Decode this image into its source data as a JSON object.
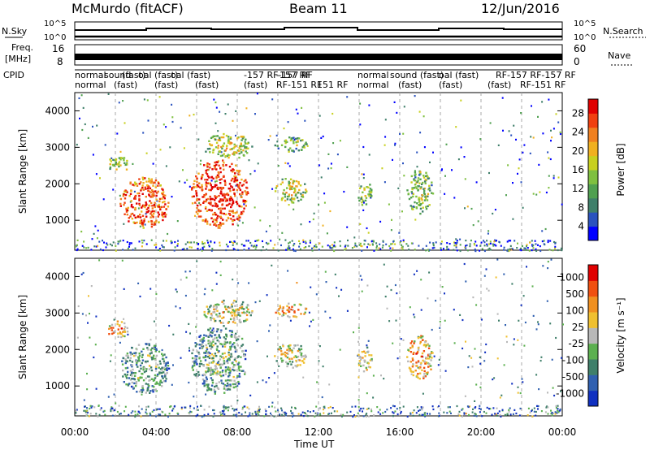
{
  "header": {
    "left": "McMurdo (fitACF)",
    "center": "Beam 11",
    "right": "12/Jun/2016"
  },
  "strips": {
    "noise_left": "N.Sky",
    "noise_right": "N.Search",
    "noise_ticks": [
      "10^5",
      "10^0"
    ],
    "freq_left_top": "Freq.",
    "freq_left_unit": "[MHz]",
    "freq_ticks_left": [
      "16",
      "8"
    ],
    "freq_ticks_right": [
      "60",
      "0"
    ],
    "freq_right": "Nave",
    "cpid_label": "CPID",
    "cpid_row1": [
      "normal",
      "sound",
      "(fast)",
      "oal (fast)",
      "oal (fast)",
      "-157 RF-157 RF",
      "-157 RF",
      "normal",
      "sound (fast)",
      "oal (fast)",
      "RF-157 RF-157 RF"
    ],
    "cpid_row2": [
      "normal",
      "(fast)",
      "(fast)",
      "(fast)",
      "(fast)",
      "RF-151 RF",
      "151 RF",
      "normal",
      "(fast)",
      "(fast)",
      "(fast)",
      "RF-151 RF"
    ]
  },
  "chart_data": [
    {
      "type": "heatmap",
      "panel": "power",
      "xlabel": "Time UT",
      "ylabel": "Slant Range [km]",
      "x_range_hours": [
        0,
        24
      ],
      "x_ticks": [
        "00:00",
        "04:00",
        "08:00",
        "12:00",
        "16:00",
        "20:00",
        "00:00"
      ],
      "y_range_km": [
        180,
        4500
      ],
      "y_ticks": [
        1000,
        2000,
        3000,
        4000
      ],
      "colorbar_label": "Power [dB]",
      "colorbar_ticks": [
        "28",
        "24",
        "20",
        "16",
        "12",
        "8",
        "4"
      ],
      "colorbar_range": [
        0,
        32
      ],
      "colors": [
        "#0000ff",
        "#2a52be",
        "#3f7f6a",
        "#50a050",
        "#7fc040",
        "#c8d020",
        "#f0b020",
        "#f08020",
        "#f04010",
        "#e00000"
      ],
      "scatter_regions": [
        {
          "t_start": 2.2,
          "t_end": 4.6,
          "r_start": 800,
          "r_end": 2200,
          "level": 0.78
        },
        {
          "t_start": 1.6,
          "t_end": 2.6,
          "r_start": 2300,
          "r_end": 2800,
          "level": 0.4
        },
        {
          "t_start": 5.7,
          "t_end": 8.5,
          "r_start": 800,
          "r_end": 2700,
          "level": 0.82
        },
        {
          "t_start": 6.3,
          "t_end": 8.7,
          "r_start": 2700,
          "r_end": 3400,
          "level": 0.45
        },
        {
          "t_start": 9.8,
          "t_end": 11.4,
          "r_start": 1500,
          "r_end": 2200,
          "level": 0.45
        },
        {
          "t_start": 9.8,
          "t_end": 11.4,
          "r_start": 2900,
          "r_end": 3300,
          "level": 0.35
        },
        {
          "t_start": 13.9,
          "t_end": 14.6,
          "r_start": 1400,
          "r_end": 2100,
          "level": 0.35
        },
        {
          "t_start": 16.3,
          "t_end": 17.6,
          "r_start": 1200,
          "r_end": 2400,
          "level": 0.38
        }
      ]
    },
    {
      "type": "heatmap",
      "panel": "velocity",
      "xlabel": "Time UT",
      "ylabel": "Slant Range [km]",
      "x_range_hours": [
        0,
        24
      ],
      "x_ticks": [
        "00:00",
        "04:00",
        "08:00",
        "12:00",
        "16:00",
        "20:00",
        "00:00"
      ],
      "y_range_km": [
        180,
        4500
      ],
      "y_ticks": [
        1000,
        2000,
        3000,
        4000
      ],
      "colorbar_label": "Velocity [m s⁻¹]",
      "colorbar_ticks": [
        "1000",
        "500",
        "100",
        "25",
        "-25",
        "-100",
        "-500",
        "-1000"
      ],
      "colors": [
        "#1030c0",
        "#3060b0",
        "#3f7f6a",
        "#5cb050",
        "#b8b8b8",
        "#f0c030",
        "#f09020",
        "#f05010",
        "#e00000"
      ],
      "scatter_regions": [
        {
          "t_start": 2.2,
          "t_end": 4.6,
          "r_start": 800,
          "r_end": 2200,
          "level": 0.3
        },
        {
          "t_start": 1.6,
          "t_end": 2.6,
          "r_start": 2300,
          "r_end": 2800,
          "level": 0.6
        },
        {
          "t_start": 5.7,
          "t_end": 8.5,
          "r_start": 800,
          "r_end": 2700,
          "level": 0.3
        },
        {
          "t_start": 6.3,
          "t_end": 8.7,
          "r_start": 2700,
          "r_end": 3400,
          "level": 0.45
        },
        {
          "t_start": 9.8,
          "t_end": 11.4,
          "r_start": 1500,
          "r_end": 2200,
          "level": 0.45
        },
        {
          "t_start": 9.8,
          "t_end": 11.4,
          "r_start": 2900,
          "r_end": 3300,
          "level": 0.6
        },
        {
          "t_start": 13.9,
          "t_end": 14.6,
          "r_start": 1400,
          "r_end": 2100,
          "level": 0.5
        },
        {
          "t_start": 16.3,
          "t_end": 17.6,
          "r_start": 1200,
          "r_end": 2400,
          "level": 0.6
        }
      ]
    }
  ]
}
